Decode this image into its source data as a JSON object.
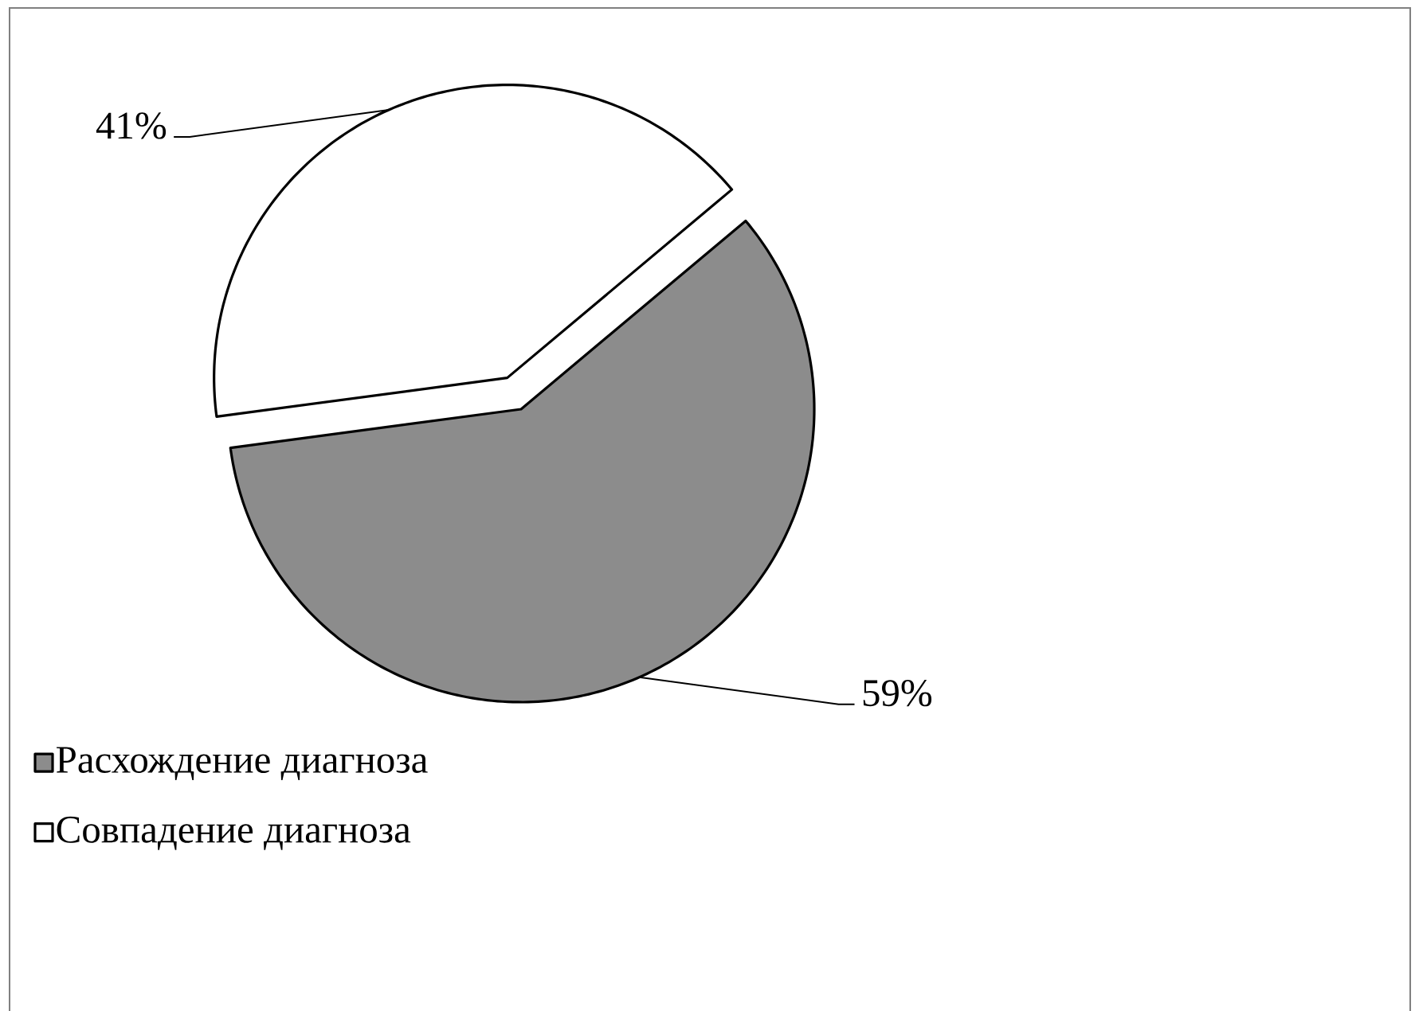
{
  "chart_data": {
    "type": "pie",
    "categories": [
      "Расхождение диагноза",
      "Совпадение диагноза"
    ],
    "values": [
      59,
      41
    ],
    "colors": [
      "#8c8c8c",
      "#ffffff"
    ],
    "value_labels": [
      "59%",
      "41%"
    ],
    "legend": "bottom left"
  }
}
